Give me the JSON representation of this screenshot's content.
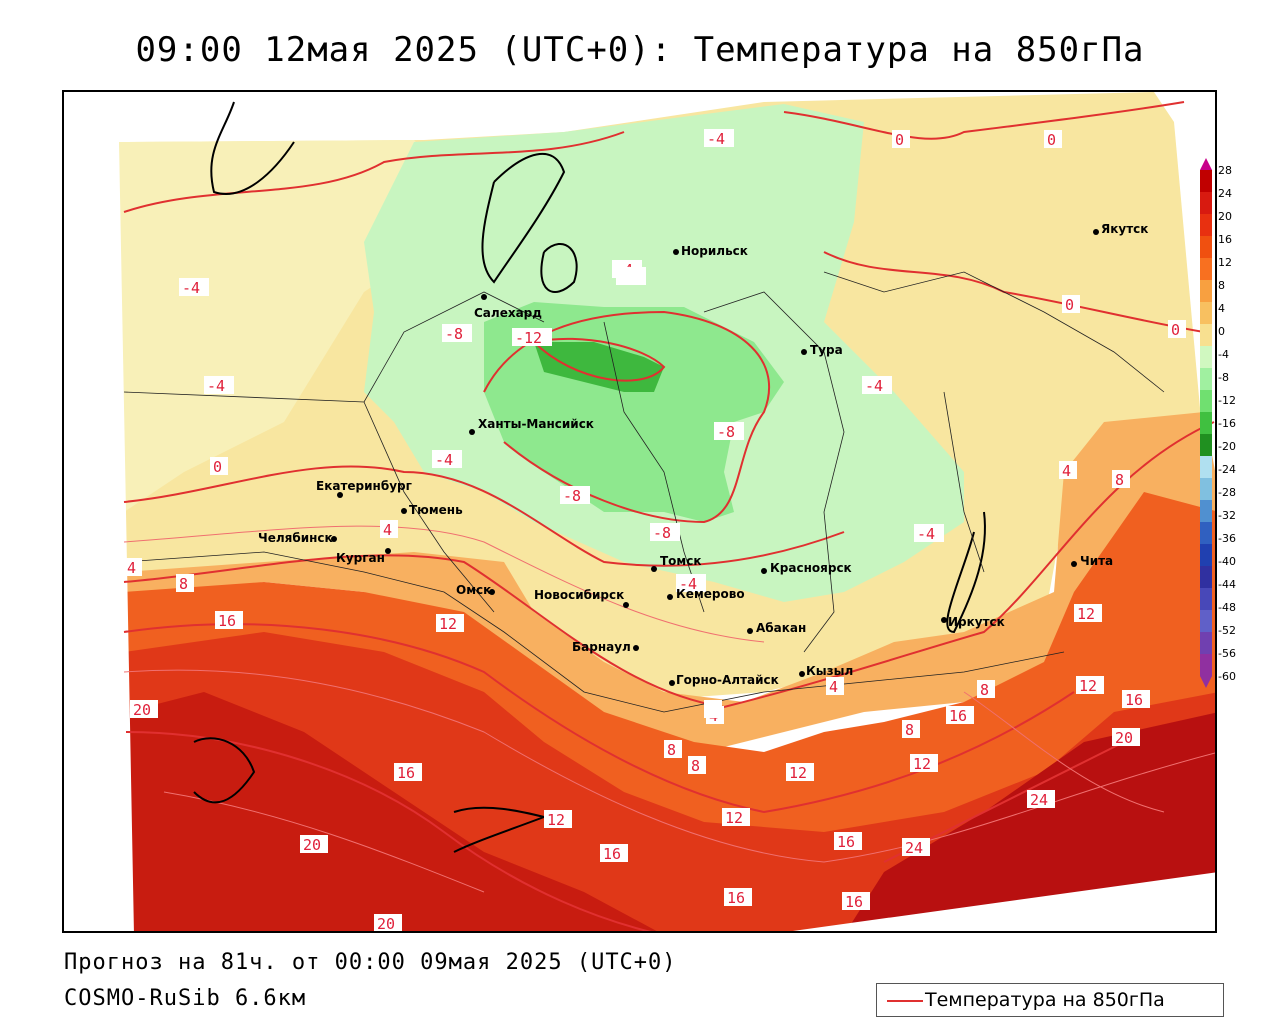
{
  "title": "09:00 12мая 2025 (UTC+0): Температура на 850гПа",
  "forecast_info": "Прогноз на 81ч. от 00:00 09мая 2025 (UTC+0)",
  "model_name": "COSMO-RuSib 6.6км",
  "legend_label": "Температура на 850гПа",
  "contour_color": "#e03030",
  "colorbar": {
    "ticks": [
      "28",
      "24",
      "20",
      "16",
      "12",
      "8",
      "4",
      "0",
      "-4",
      "-8",
      "-12",
      "-16",
      "-20",
      "-24",
      "-28",
      "-32",
      "-36",
      "-40",
      "-44",
      "-48",
      "-52",
      "-56",
      "-60"
    ],
    "colors": [
      "#c00000",
      "#d81a10",
      "#e83010",
      "#f05010",
      "#f87020",
      "#f8a040",
      "#f8c060",
      "#f8e090",
      "#d0f8c0",
      "#a0f0a0",
      "#70e070",
      "#40c040",
      "#209020",
      "#b0e0f0",
      "#80c0e0",
      "#5090d0",
      "#3060c0",
      "#2040b0",
      "#3030a0",
      "#4848b8",
      "#6060c8",
      "#7040b0",
      "#9030a0"
    ]
  },
  "cities": [
    {
      "name": "Салехард"
    },
    {
      "name": "Норильск"
    },
    {
      "name": "Якутск"
    },
    {
      "name": "Тура"
    },
    {
      "name": "Ханты-Мансийск"
    },
    {
      "name": "Екатеринбург"
    },
    {
      "name": "Тюмень"
    },
    {
      "name": "Челябинск"
    },
    {
      "name": "Курган"
    },
    {
      "name": "Омск"
    },
    {
      "name": "Новосибирск"
    },
    {
      "name": "Томск"
    },
    {
      "name": "Кемерово"
    },
    {
      "name": "Красноярск"
    },
    {
      "name": "Барнаул"
    },
    {
      "name": "Абакан"
    },
    {
      "name": "Иркутск"
    },
    {
      "name": "Чита"
    },
    {
      "name": "Кызыл"
    },
    {
      "name": "Горно-Алтайск"
    }
  ],
  "isotherm_labels": [
    "-4",
    "0",
    "-4",
    "-4",
    "0",
    "0",
    "-4",
    "-4",
    "-8",
    "-12",
    "-4",
    "-4",
    "-8",
    "-8",
    "-8",
    "-4",
    "-4",
    "0",
    "0",
    "4",
    "4",
    "8",
    "12",
    "4",
    "8",
    "12",
    "16",
    "4",
    "8",
    "12",
    "16",
    "4",
    "20",
    "16",
    "20",
    "12",
    "12",
    "20",
    "24",
    "16",
    "24",
    "16",
    "16",
    "20",
    "12",
    "16",
    "4",
    "8",
    "8",
    "8",
    "12",
    "16"
  ]
}
